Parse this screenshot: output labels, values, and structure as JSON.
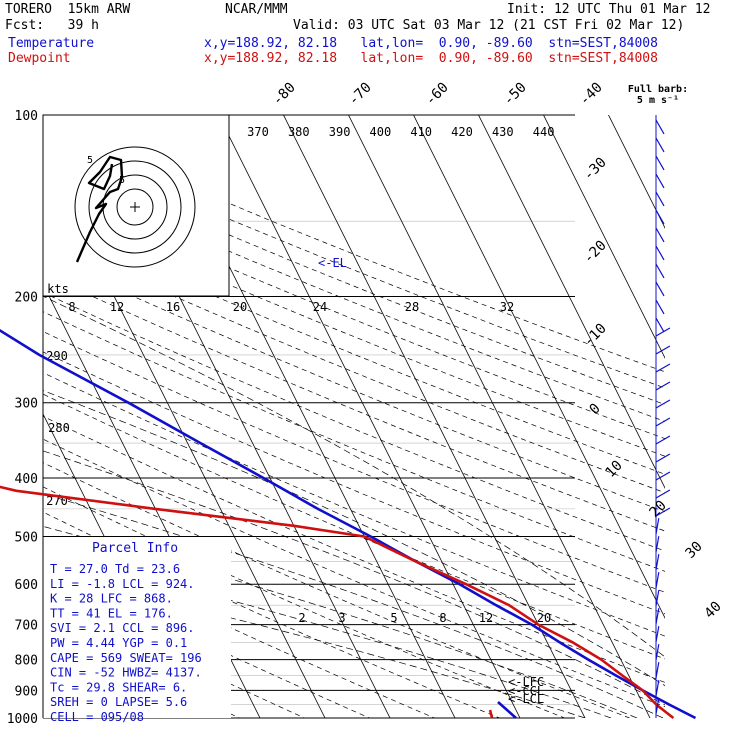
{
  "header": {
    "model": "TORERO  15km ARW",
    "org": "NCAR/MMM",
    "init": "Init: 12 UTC Thu 01 Mar 12",
    "fcst": "Fcst:   39 h",
    "valid": "Valid: 03 UTC Sat 03 Mar 12 (21 CST Fri 02 Mar 12)",
    "temp_label": "Temperature",
    "temp_loc": "x,y=188.92, 82.18   lat,lon=  0.90, -89.60  stn=SEST,84008",
    "dew_label": "Dewpoint",
    "dew_loc": "x,y=188.92, 82.18   lat,lon=  0.90, -89.60  stn=SEST,84008"
  },
  "barb_legend": {
    "line1": "Full barb:",
    "line2": "5 m s⁻¹"
  },
  "hodograph": {
    "units": "kts",
    "ring_label_1": "5",
    "ring_label_2": "5"
  },
  "parcel_info": {
    "title": "Parcel Info",
    "rows": [
      "T   =   27.0  Td =  23.6",
      "LI  =   -1.8  LCL =  924.",
      "K   =     28  LFC =  868.",
      "TT  =     41  EL  =  176.",
      "SVI =    2.1  CCL =  896.",
      "PW  =   4.44  YGP =   0.1",
      "CAPE =   569  SWEAT=  196",
      "CIN  =   -52  HWBZ= 4137.",
      "Tc  =   29.8  SHEAR=    6.",
      "SREH =     0  LAPSE=  5.6",
      "CELL = 095/08"
    ]
  },
  "annotations": {
    "el": "<-EL",
    "lfc": "<-LFC",
    "ccl": "<-CCL",
    "lcl": "<-LCL"
  },
  "chart_data": {
    "type": "line",
    "title": "",
    "x_axis": "temperature (C), skewed",
    "y_axis": "pressure (hPa), log scale",
    "pressure_ticks": [
      "100",
      "200",
      "300",
      "400",
      "500",
      "600",
      "700",
      "800",
      "900",
      "1000"
    ],
    "isotherm_labels": [
      "-80",
      "-70",
      "-60",
      "-50",
      "-40",
      "-30",
      "-20",
      "-10",
      "0",
      "10",
      "20",
      "30",
      "40"
    ],
    "theta_e_labels": [
      "370",
      "380",
      "390",
      "400",
      "410",
      "420",
      "430",
      "440"
    ],
    "theta_labels": [
      "290",
      "280",
      "270"
    ],
    "mixing_ratio_labels_upper": [
      "8",
      "12",
      "16",
      "20",
      "24",
      "28",
      "32"
    ],
    "mixing_ratio_labels_lower": [
      "2",
      "3",
      "5",
      "8",
      "12",
      "20"
    ],
    "series": [
      {
        "name": "Temperature",
        "color": "#1010cc",
        "points": [
          [
            100,
            -75
          ],
          [
            120,
            -73
          ],
          [
            150,
            -66
          ],
          [
            176,
            -61
          ],
          [
            200,
            -56
          ],
          [
            250,
            -46
          ],
          [
            300,
            -36
          ],
          [
            350,
            -28
          ],
          [
            400,
            -21
          ],
          [
            450,
            -15
          ],
          [
            500,
            -9
          ],
          [
            550,
            -4
          ],
          [
            600,
            1
          ],
          [
            650,
            5
          ],
          [
            700,
            9
          ],
          [
            750,
            12
          ],
          [
            800,
            15
          ],
          [
            850,
            18
          ],
          [
            900,
            21
          ],
          [
            950,
            24
          ],
          [
            1000,
            27
          ]
        ]
      },
      {
        "name": "Dewpoint",
        "color": "#d01010",
        "points": [
          [
            100,
            -90
          ],
          [
            150,
            -97
          ],
          [
            200,
            -97
          ],
          [
            250,
            -95
          ],
          [
            270,
            -90
          ],
          [
            300,
            -92
          ],
          [
            340,
            -87
          ],
          [
            370,
            -79
          ],
          [
            420,
            -60
          ],
          [
            450,
            -40
          ],
          [
            480,
            -20
          ],
          [
            500,
            -10
          ],
          [
            550,
            -4
          ],
          [
            600,
            2
          ],
          [
            650,
            7
          ],
          [
            700,
            10
          ],
          [
            750,
            14
          ],
          [
            800,
            17
          ],
          [
            850,
            19
          ],
          [
            900,
            21
          ],
          [
            950,
            22
          ],
          [
            1000,
            23.6
          ]
        ]
      }
    ]
  }
}
